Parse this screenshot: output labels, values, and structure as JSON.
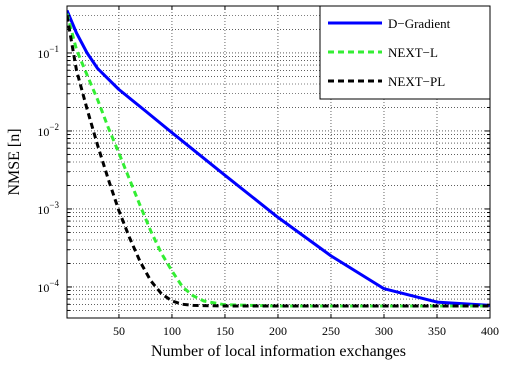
{
  "chart_data": {
    "type": "line",
    "title": "",
    "xlabel": "Number of local information exchanges",
    "ylabel": "NMSE [n]",
    "xlim": [
      1,
      400
    ],
    "ylim": [
      4e-05,
      0.4
    ],
    "yscale": "log",
    "grid": true,
    "legend_position": "top-right",
    "x_ticks": [
      50,
      100,
      150,
      200,
      250,
      300,
      350,
      400
    ],
    "x_tick_labels": [
      "50",
      "100",
      "150",
      "200",
      "250",
      "300",
      "350",
      "400"
    ],
    "y_ticks": [
      0.0001,
      0.001,
      0.01,
      0.1
    ],
    "y_tick_labels": [
      {
        "base": "10",
        "exp": "−4"
      },
      {
        "base": "10",
        "exp": "−3"
      },
      {
        "base": "10",
        "exp": "−2"
      },
      {
        "base": "10",
        "exp": "−1"
      }
    ],
    "series": [
      {
        "name": "D−Gradient",
        "color": "#0000ff",
        "style": "solid",
        "x": [
          1,
          10,
          20,
          30,
          50,
          75,
          100,
          150,
          200,
          250,
          300,
          350,
          400
        ],
        "y": [
          0.35,
          0.18,
          0.1,
          0.063,
          0.034,
          0.018,
          0.0095,
          0.0027,
          0.00078,
          0.00025,
          9.5e-05,
          6.4e-05,
          5.8e-05
        ]
      },
      {
        "name": "NEXT−L",
        "color": "#33ee33",
        "style": "dashed",
        "x": [
          1,
          10,
          20,
          30,
          40,
          50,
          60,
          70,
          80,
          90,
          100,
          110,
          120,
          130,
          150,
          200,
          250,
          300,
          350,
          400
        ],
        "y": [
          0.32,
          0.11,
          0.052,
          0.025,
          0.011,
          0.0052,
          0.0024,
          0.0011,
          0.00052,
          0.00027,
          0.00016,
          0.0001,
          7.7e-05,
          6.6e-05,
          5.9e-05,
          5.7e-05,
          5.7e-05,
          5.7e-05,
          5.7e-05,
          5.7e-05
        ]
      },
      {
        "name": "NEXT−PL",
        "color": "#000000",
        "style": "dashed",
        "x": [
          1,
          10,
          20,
          30,
          40,
          50,
          60,
          70,
          80,
          90,
          100,
          110,
          120,
          150,
          200,
          250,
          300,
          350,
          400
        ],
        "y": [
          0.3,
          0.06,
          0.019,
          0.0065,
          0.0024,
          0.00095,
          0.00043,
          0.00021,
          0.00012,
          8.2e-05,
          6.6e-05,
          6e-05,
          5.8e-05,
          5.7e-05,
          5.7e-05,
          5.7e-05,
          5.7e-05,
          5.7e-05,
          5.7e-05
        ]
      }
    ]
  }
}
